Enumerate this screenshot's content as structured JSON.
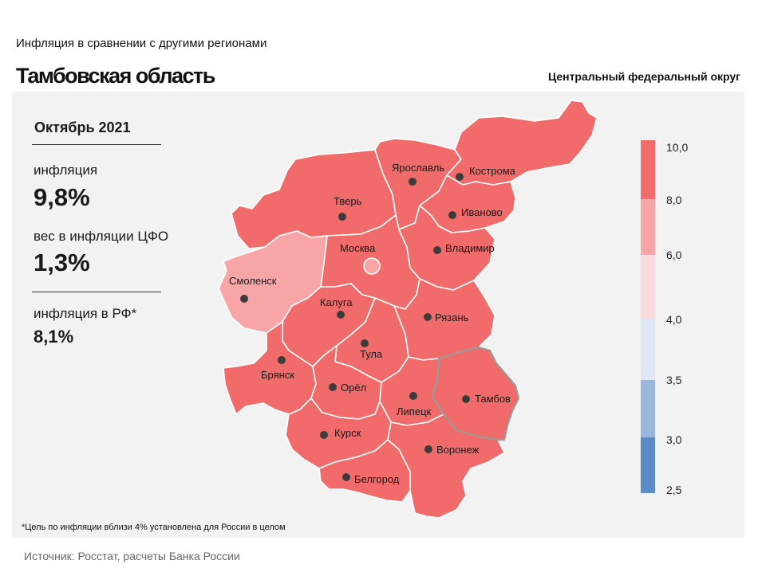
{
  "header": {
    "subtitle": "Инфляция  в сравнении  с другими  регионами",
    "region": "Тамбовская область",
    "district": "Центральный федеральный округ"
  },
  "stats": {
    "period": "Октябрь 2021",
    "inflation_label": "инфляция",
    "inflation_value": "9,8%",
    "weight_label": "вес в инфляции  ЦФО",
    "weight_value": "1,3%",
    "rf_label": "инфляция  в РФ*",
    "rf_value": "8,1%"
  },
  "legend": {
    "ticks": [
      "10,0",
      "8,0",
      "6,0",
      "4,0",
      "3,5",
      "3,0",
      "2,5"
    ],
    "colors": {
      "8-10": "#f26b6b",
      "6-8": "#f7a5a7",
      "4-6": "#fadcdf",
      "3.5-4": "#dfe7f4",
      "3-3.5": "#9bb6de",
      "2.5-3": "#5b8cc9"
    }
  },
  "map": {
    "highlighted_region": "Тамбов",
    "cities": [
      {
        "name": "Ярославль",
        "bin": "8-10"
      },
      {
        "name": "Кострома",
        "bin": "8-10"
      },
      {
        "name": "Тверь",
        "bin": "8-10"
      },
      {
        "name": "Иваново",
        "bin": "8-10"
      },
      {
        "name": "Москва",
        "bin": "8-10"
      },
      {
        "name": "Владимир",
        "bin": "8-10"
      },
      {
        "name": "Смоленск",
        "bin": "6-8"
      },
      {
        "name": "Калуга",
        "bin": "8-10"
      },
      {
        "name": "Рязань",
        "bin": "8-10"
      },
      {
        "name": "Тула",
        "bin": "8-10"
      },
      {
        "name": "Брянск",
        "bin": "8-10"
      },
      {
        "name": "Орёл",
        "bin": "8-10"
      },
      {
        "name": "Липецк",
        "bin": "8-10"
      },
      {
        "name": "Тамбов",
        "bin": "8-10"
      },
      {
        "name": "Курск",
        "bin": "8-10"
      },
      {
        "name": "Воронеж",
        "bin": "8-10"
      },
      {
        "name": "Белгород",
        "bin": "8-10"
      }
    ]
  },
  "footnote": "*Цель по инфляции вблизи 4% установлена для России в целом",
  "source": "Источник: Росстат, расчеты Банка России"
}
